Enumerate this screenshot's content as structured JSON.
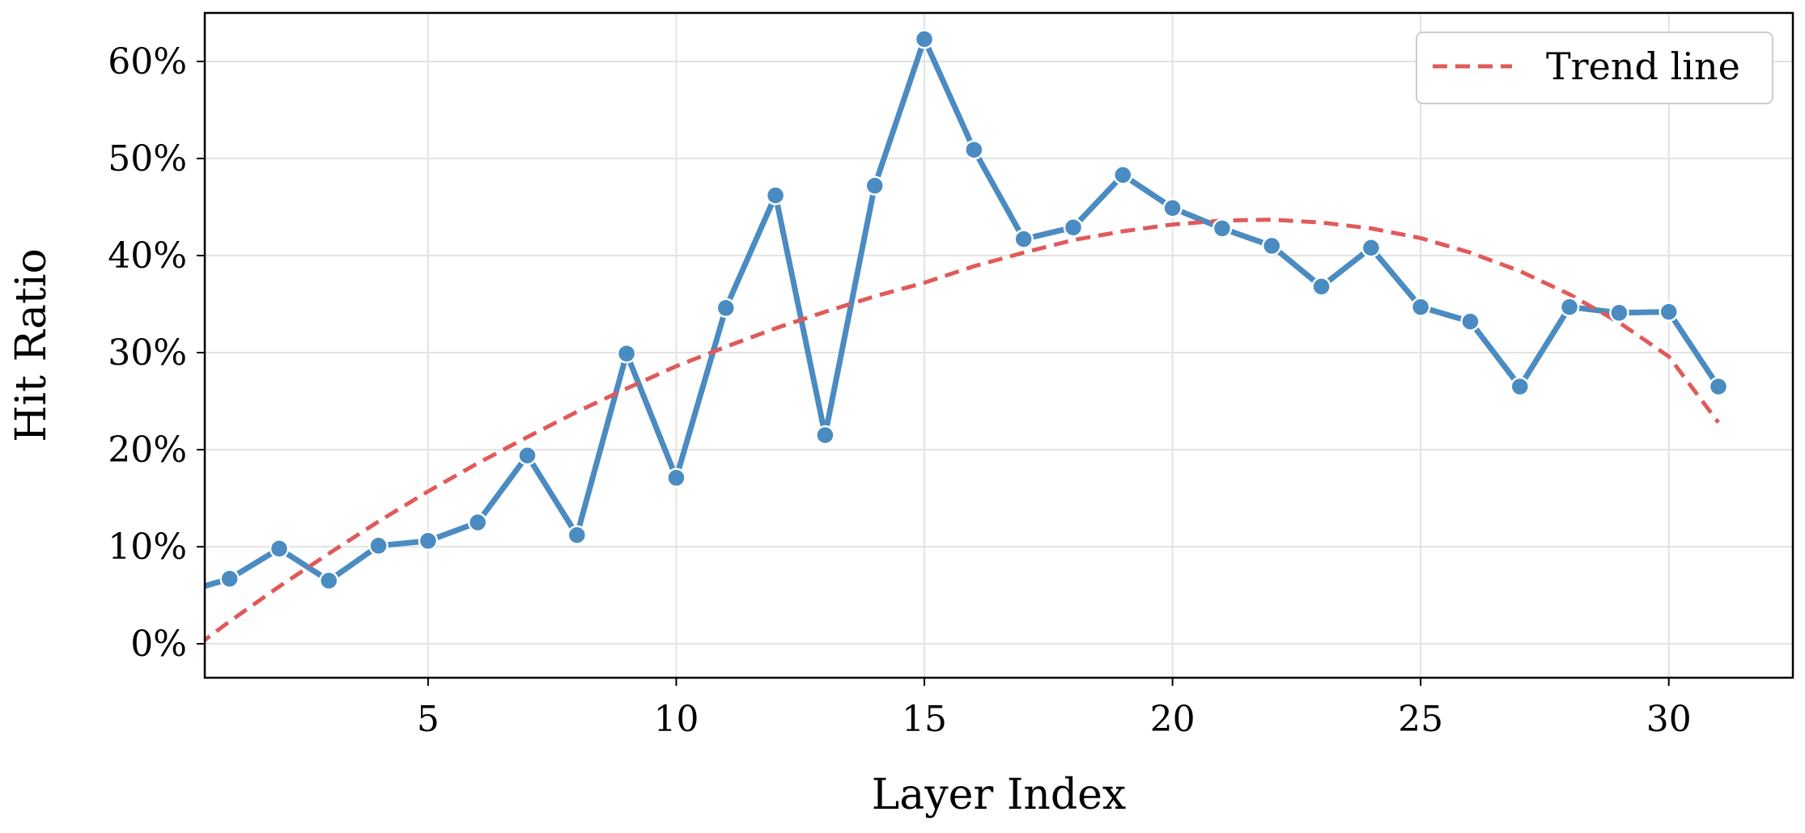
{
  "chart_data": {
    "type": "line",
    "xlabel": "Layer Index",
    "ylabel": "Hit Ratio",
    "xlim": [
      0.5,
      32.5
    ],
    "ylim": [
      -3.5,
      65
    ],
    "x_ticks": [
      5,
      10,
      15,
      20,
      25,
      30
    ],
    "y_ticks": [
      0,
      10,
      20,
      30,
      40,
      50,
      60
    ],
    "x_tick_labels": [
      "5",
      "10",
      "15",
      "20",
      "25",
      "30"
    ],
    "y_tick_labels": [
      "0%",
      "10%",
      "20%",
      "30%",
      "40%",
      "50%",
      "60%"
    ],
    "grid": true,
    "legend_position": "top-right",
    "series": [
      {
        "color": "#4a8bc2",
        "marker": "circle",
        "x": [
          0,
          1,
          2,
          3,
          4,
          5,
          6,
          7,
          8,
          9,
          10,
          11,
          12,
          13,
          14,
          15,
          16,
          17,
          18,
          19,
          20,
          21,
          22,
          23,
          24,
          25,
          26,
          27,
          28,
          29,
          30,
          31
        ],
        "values": [
          5.2,
          6.7,
          9.8,
          6.5,
          10.1,
          10.6,
          12.5,
          19.4,
          11.2,
          29.9,
          17.1,
          34.6,
          46.2,
          21.5,
          47.2,
          62.3,
          50.9,
          41.7,
          42.9,
          48.3,
          44.9,
          42.8,
          41.0,
          36.8,
          40.8,
          34.7,
          33.2,
          26.5,
          34.7,
          34.1,
          34.2,
          26.5
        ]
      },
      {
        "name": "Trend line",
        "color": "#e05a5a",
        "style": "dashed",
        "x": [
          0,
          1,
          2,
          3,
          4,
          5,
          6,
          7,
          8,
          9,
          10,
          11,
          12,
          13,
          14,
          15,
          16,
          17,
          18,
          19,
          20,
          21,
          22,
          23,
          24,
          25,
          26,
          27,
          28,
          29,
          30,
          31
        ],
        "values": [
          -1.5,
          2.3,
          5.9,
          9.3,
          12.6,
          15.7,
          18.6,
          21.3,
          23.9,
          26.3,
          28.6,
          30.6,
          32.5,
          34.2,
          35.8,
          37.2,
          38.9,
          40.3,
          41.6,
          42.5,
          43.2,
          43.6,
          43.7,
          43.4,
          42.8,
          41.8,
          40.3,
          38.4,
          36.0,
          33.1,
          29.6,
          22.8
        ]
      }
    ]
  }
}
